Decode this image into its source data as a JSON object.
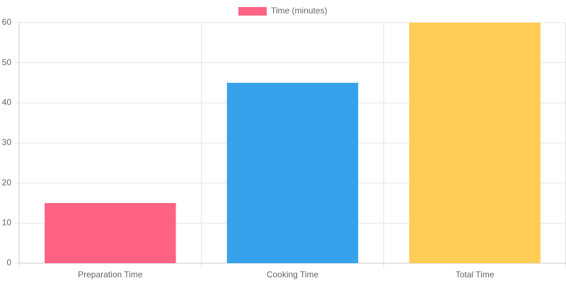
{
  "chart_data": {
    "type": "bar",
    "categories": [
      "Preparation Time",
      "Cooking Time",
      "Total Time"
    ],
    "series": [
      {
        "name": "Time (minutes)",
        "color": "#ff6384",
        "colors": [
          "#ff6384",
          "#36a2eb",
          "#ffcd56"
        ],
        "values": [
          15,
          45,
          60
        ]
      }
    ],
    "ylim": [
      0,
      60
    ],
    "yticks": [
      0,
      10,
      20,
      30,
      40,
      50,
      60
    ],
    "grid": true,
    "legend": "top"
  }
}
